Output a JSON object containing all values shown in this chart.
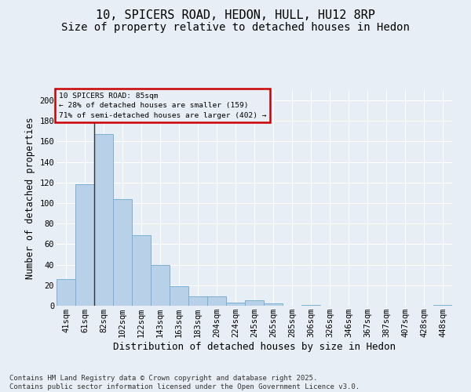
{
  "title1": "10, SPICERS ROAD, HEDON, HULL, HU12 8RP",
  "title2": "Size of property relative to detached houses in Hedon",
  "xlabel": "Distribution of detached houses by size in Hedon",
  "ylabel": "Number of detached properties",
  "categories": [
    "41sqm",
    "61sqm",
    "82sqm",
    "102sqm",
    "122sqm",
    "143sqm",
    "163sqm",
    "183sqm",
    "204sqm",
    "224sqm",
    "245sqm",
    "265sqm",
    "285sqm",
    "306sqm",
    "326sqm",
    "346sqm",
    "367sqm",
    "387sqm",
    "407sqm",
    "428sqm",
    "448sqm"
  ],
  "values": [
    26,
    118,
    167,
    104,
    69,
    40,
    19,
    9,
    9,
    3,
    5,
    2,
    0,
    1,
    0,
    0,
    0,
    0,
    0,
    0,
    1
  ],
  "bar_color": "#b8d0e8",
  "bar_edge_color": "#7aafd4",
  "vline_color": "#333333",
  "annotation_box_text": "10 SPICERS ROAD: 85sqm\n← 28% of detached houses are smaller (159)\n71% of semi-detached houses are larger (402) →",
  "annotation_box_color": "#cc0000",
  "ylim": [
    0,
    210
  ],
  "yticks": [
    0,
    20,
    40,
    60,
    80,
    100,
    120,
    140,
    160,
    180,
    200
  ],
  "background_color": "#e8eef5",
  "grid_color": "#ffffff",
  "footer_text": "Contains HM Land Registry data © Crown copyright and database right 2025.\nContains public sector information licensed under the Open Government Licence v3.0.",
  "title_fontsize": 11,
  "subtitle_fontsize": 10,
  "axis_label_fontsize": 8.5,
  "tick_fontsize": 7.5,
  "footer_fontsize": 6.5
}
